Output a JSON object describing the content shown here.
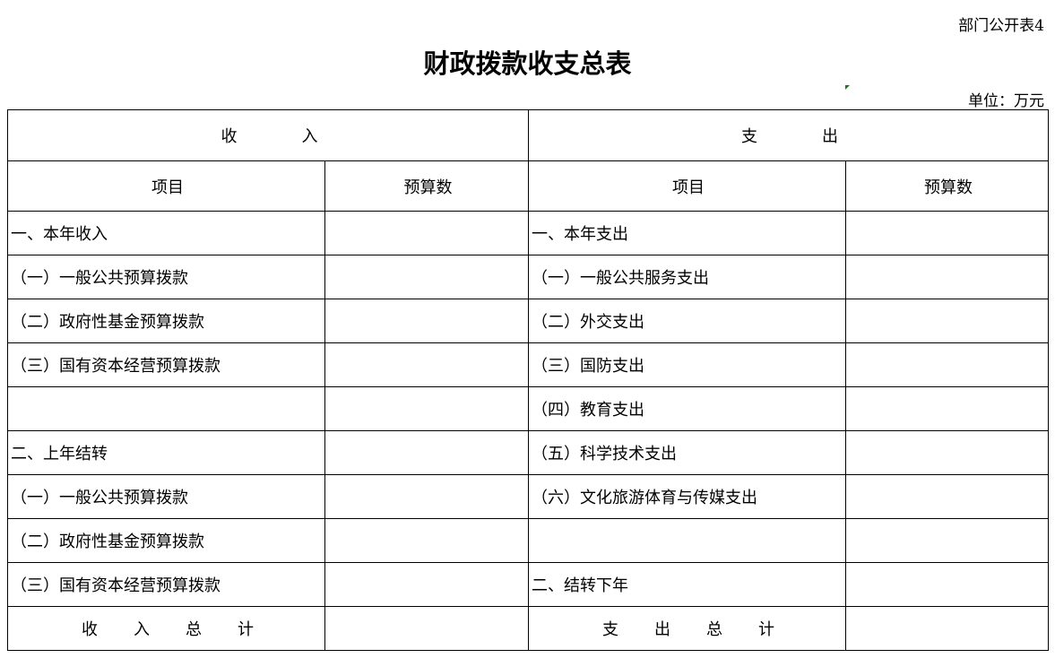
{
  "form_number": "部门公开表4",
  "title": "财政拨款收支总表",
  "unit": "单位：万元",
  "headers": {
    "income": "收入",
    "expense": "支出",
    "item": "项目",
    "budget": "预算数"
  },
  "rows": [
    {
      "income_item": "一、本年收入",
      "income_budget": "",
      "expense_item": "一、本年支出",
      "expense_budget": ""
    },
    {
      "income_item": "（一）一般公共预算拨款",
      "income_budget": "",
      "expense_item": "（一）一般公共服务支出",
      "expense_budget": ""
    },
    {
      "income_item": "（二）政府性基金预算拨款",
      "income_budget": "",
      "expense_item": "（二）外交支出",
      "expense_budget": ""
    },
    {
      "income_item": "（三）国有资本经营预算拨款",
      "income_budget": "",
      "expense_item": "（三）国防支出",
      "expense_budget": ""
    },
    {
      "income_item": "",
      "income_budget": "",
      "expense_item": "（四）教育支出",
      "expense_budget": ""
    },
    {
      "income_item": "二、上年结转",
      "income_budget": "",
      "expense_item": "（五）科学技术支出",
      "expense_budget": ""
    },
    {
      "income_item": "（一）一般公共预算拨款",
      "income_budget": "",
      "expense_item": "（六）文化旅游体育与传媒支出",
      "expense_budget": ""
    },
    {
      "income_item": "（二）政府性基金预算拨款",
      "income_budget": "",
      "expense_item": "",
      "expense_budget": ""
    },
    {
      "income_item": "（三）国有资本经营预算拨款",
      "income_budget": "",
      "expense_item": "二、结转下年",
      "expense_budget": ""
    }
  ],
  "totals": {
    "income_label": "收入总计",
    "income_budget": "",
    "expense_label": "支出总计",
    "expense_budget": ""
  }
}
